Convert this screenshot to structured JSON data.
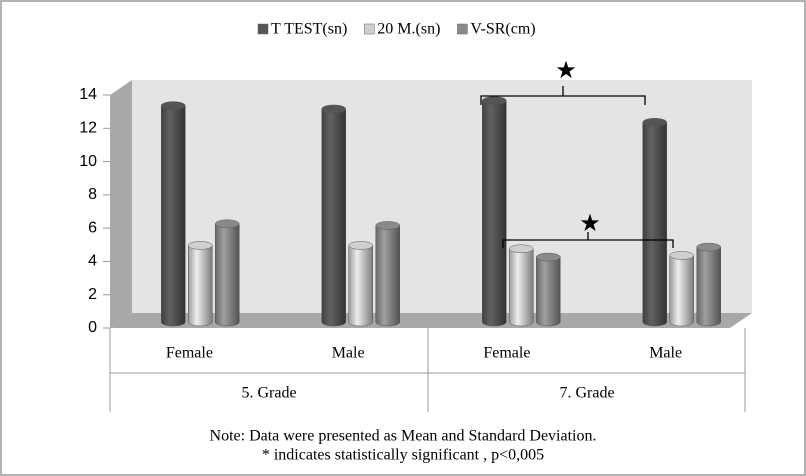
{
  "chart_data": {
    "type": "bar3d",
    "categories": [
      "Female",
      "Male",
      "Female",
      "Male"
    ],
    "groups": [
      "5. Grade",
      "7. Grade"
    ],
    "series": [
      {
        "name": "T TEST(sn)",
        "color": "#555555",
        "values": [
          13.0,
          12.8,
          13.3,
          12.0
        ]
      },
      {
        "name": "20 M.(sn)",
        "color": "#cfcfcf",
        "values": [
          4.6,
          4.6,
          4.4,
          4.0
        ]
      },
      {
        "name": "V-SR(cm)",
        "color": "#8a8a8a",
        "values": [
          5.9,
          5.8,
          3.9,
          4.5
        ]
      }
    ],
    "ylim": [
      0,
      14
    ],
    "yticks": [
      0,
      2,
      4,
      6,
      8,
      10,
      12,
      14
    ],
    "legend": "top",
    "annotations": [
      "★",
      "★"
    ],
    "notes": [
      "Note: Data were presented as Mean and Standard Deviation.",
      "* indicates statistically significant , p<0,005"
    ]
  }
}
